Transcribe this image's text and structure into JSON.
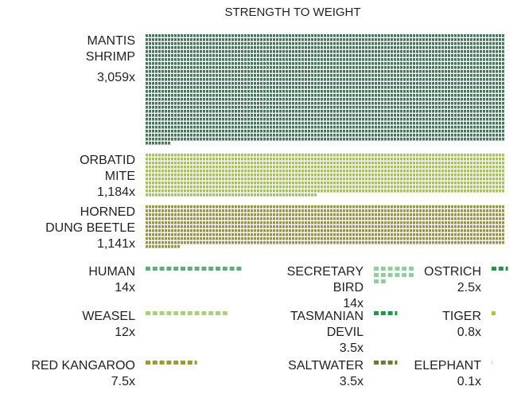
{
  "chart_data": {
    "type": "waffle",
    "title": "STRENGTH TO WEIGHT",
    "categories": [
      [
        "MANTIS",
        "SHRIMP"
      ],
      [
        "ORBATID",
        "MITE"
      ],
      [
        "HORNED",
        "DUNG BEETLE"
      ],
      [
        "HUMAN"
      ],
      [
        "WEASEL"
      ],
      [
        "RED KANGAROO"
      ],
      [
        "SECRETARY",
        "BIRD"
      ],
      [
        "TASMANIAN",
        "DEVIL"
      ],
      [
        "SALTWATER"
      ],
      [
        "OSTRICH"
      ],
      [
        "TIGER"
      ],
      [
        "ELEPHANT"
      ]
    ],
    "values": [
      3059,
      1184,
      1141,
      14,
      12,
      7.5,
      14,
      3.5,
      3.5,
      2.5,
      0.8,
      0.1
    ],
    "value_labels": [
      "3,059x",
      "1,184x",
      "1,141x",
      "14x",
      "12x",
      "7.5x",
      "14x",
      "3.5x",
      "3.5x",
      "2.5x",
      "0.8x",
      "0.1x"
    ],
    "colors": [
      "#3b7d5a",
      "#a6c93c",
      "#9b9a2f",
      "#5fae7c",
      "#a9d07c",
      "#9b9a2f",
      "#90cf9c",
      "#1a9a4b",
      "#6b7a32",
      "#1a9a4b",
      "#a9c23f",
      "#c9d9a3"
    ]
  }
}
